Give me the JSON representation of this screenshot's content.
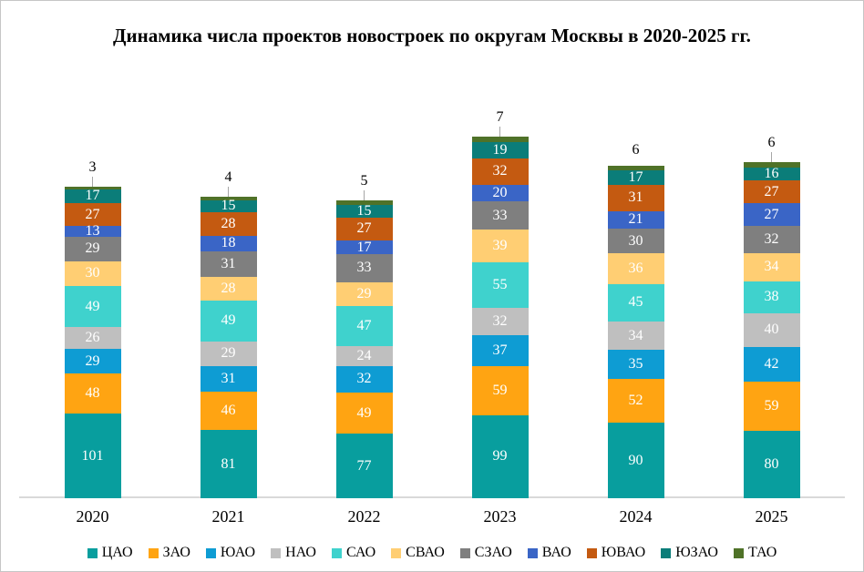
{
  "window": {
    "background_color": "#FFFFFF",
    "border_color": "#C6C6C6"
  },
  "chart_data": {
    "type": "bar",
    "stacked": true,
    "title": "Динамика числа проектов новостроек по округам Москвы в 2020-2025 гг.",
    "categories": [
      "2020",
      "2021",
      "2022",
      "2023",
      "2024",
      "2025"
    ],
    "series": [
      {
        "name": "ЦАО",
        "color": "#089E9E",
        "values": [
          101,
          81,
          77,
          99,
          90,
          80
        ]
      },
      {
        "name": "ЗАО",
        "color": "#FFA412",
        "values": [
          48,
          46,
          49,
          59,
          52,
          59
        ]
      },
      {
        "name": "ЮАО",
        "color": "#0E9CD3",
        "values": [
          29,
          31,
          32,
          37,
          35,
          42
        ]
      },
      {
        "name": "НАО",
        "color": "#BFBFBF",
        "values": [
          26,
          29,
          24,
          32,
          34,
          40
        ]
      },
      {
        "name": "САО",
        "color": "#3FD2CD",
        "values": [
          49,
          49,
          47,
          55,
          45,
          38
        ]
      },
      {
        "name": "СВАО",
        "color": "#FFCE73",
        "values": [
          30,
          28,
          29,
          39,
          36,
          34
        ]
      },
      {
        "name": "СЗАО",
        "color": "#7F7F7F",
        "values": [
          29,
          31,
          33,
          33,
          30,
          32
        ]
      },
      {
        "name": "ВАО",
        "color": "#3A65C6",
        "values": [
          13,
          18,
          17,
          20,
          21,
          27
        ]
      },
      {
        "name": "ЮВАО",
        "color": "#C45A11",
        "values": [
          27,
          28,
          27,
          32,
          31,
          27
        ]
      },
      {
        "name": "ЮЗАО",
        "color": "#0B7D79",
        "values": [
          17,
          15,
          15,
          19,
          17,
          16
        ]
      },
      {
        "name": "ТАО",
        "color": "#4F7228",
        "values": [
          3,
          4,
          5,
          7,
          6,
          6
        ],
        "label_position": "above",
        "leader_line": [
          true,
          true,
          true,
          true,
          false,
          true
        ]
      }
    ],
    "totals": [
      372,
      360,
      355,
      432,
      397,
      401
    ],
    "legend_position": "bottom",
    "legend_entries": [
      "ЦАО",
      "ЗАО",
      "ЮАО",
      "НАО",
      "САО",
      "СВАО",
      "СЗАО",
      "ВАО",
      "ЮВАО",
      "ЮЗАО",
      "ТАО"
    ],
    "gridlines": false,
    "y_axis_visible": false,
    "ylim": [
      0,
      440
    ],
    "pixels_per_unit": 0.92,
    "axis_line_color": "#D9D9D9",
    "data_label_color_inside": "#FFFFFF",
    "data_label_color_above": "#000000",
    "min_height_for_inside_label": 10
  }
}
